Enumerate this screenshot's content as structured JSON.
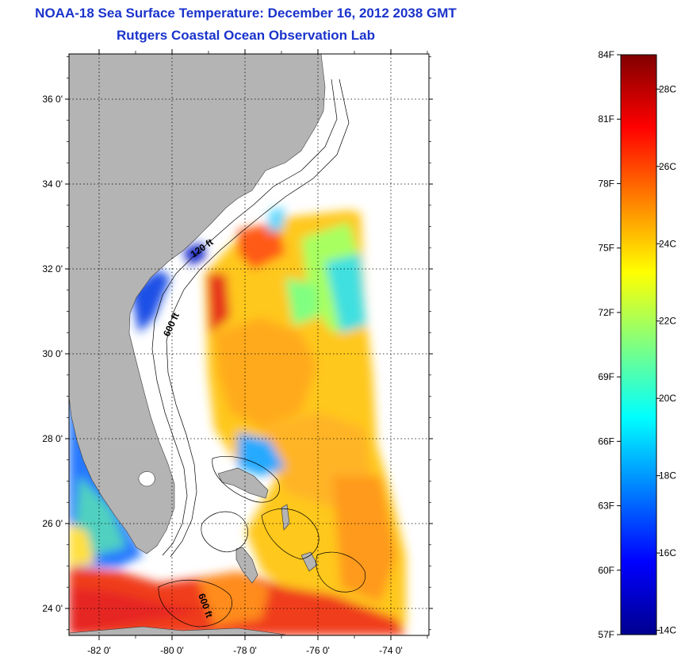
{
  "title": {
    "line1": "NOAA-18 Sea Surface Temperature:  December 16, 2012 2038 GMT",
    "line2": "Rutgers Coastal Ocean Observation Lab"
  },
  "map": {
    "lat_ticks": [
      {
        "value": 36,
        "label": "36 0'"
      },
      {
        "value": 34,
        "label": "34 0'"
      },
      {
        "value": 32,
        "label": "32 0'"
      },
      {
        "value": 30,
        "label": "30 0'"
      },
      {
        "value": 28,
        "label": "28 0'"
      },
      {
        "value": 26,
        "label": "26 0'"
      },
      {
        "value": 24,
        "label": "24 0'"
      }
    ],
    "lon_ticks": [
      {
        "value": -82,
        "label": "-82 0'"
      },
      {
        "value": -80,
        "label": "-80 0'"
      },
      {
        "value": -78,
        "label": "-78 0'"
      },
      {
        "value": -76,
        "label": "-76 0'"
      },
      {
        "value": -74,
        "label": "-74 0'"
      }
    ],
    "contour_labels": [
      "120 ft",
      "600 ft",
      "600 ft"
    ],
    "colors": {
      "land": "#b4b4b4",
      "ocean": "#ffffff",
      "frame": "#000000",
      "title": "#1a33cc"
    }
  },
  "colorbar": {
    "fahrenheit": [
      "84F",
      "81F",
      "78F",
      "75F",
      "72F",
      "69F",
      "66F",
      "63F",
      "60F",
      "57F"
    ],
    "celsius": [
      "28C",
      "26C",
      "24C",
      "22C",
      "20C",
      "18C",
      "16C",
      "14C"
    ],
    "f_range": [
      57,
      84
    ],
    "colormap": [
      "#00008f",
      "#0000ff",
      "#0080ff",
      "#00ffff",
      "#80ff80",
      "#ffff00",
      "#ff8000",
      "#ff0000",
      "#800000"
    ]
  }
}
